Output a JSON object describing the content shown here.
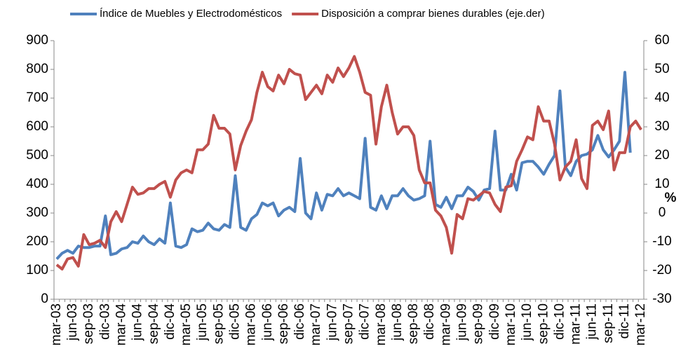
{
  "chart_data": {
    "type": "line",
    "legend": "top",
    "y2_label": "%",
    "categories": [
      "mar-03",
      null,
      null,
      "jun-03",
      null,
      null,
      "sep-03",
      null,
      null,
      "dic-03",
      null,
      null,
      "mar-04",
      null,
      null,
      "jun-04",
      null,
      null,
      "sep-04",
      null,
      null,
      "dic-04",
      null,
      null,
      "mar-05",
      null,
      null,
      "jun-05",
      null,
      null,
      "sep-05",
      null,
      null,
      "dic-05",
      null,
      null,
      "mar-06",
      null,
      null,
      "jun-06",
      null,
      null,
      "sep-06",
      null,
      null,
      "dic-06",
      null,
      null,
      "mar-07",
      null,
      null,
      "jun-07",
      null,
      null,
      "sep-07",
      null,
      null,
      "dic-07",
      null,
      null,
      "mar-08",
      null,
      null,
      "jun-08",
      null,
      null,
      "sep-08",
      null,
      null,
      "dic-08",
      null,
      null,
      "mar-09",
      null,
      null,
      "jun-09",
      null,
      null,
      "sep-09",
      null,
      null,
      "dic-09",
      null,
      null,
      "mar-10",
      null,
      null,
      "jun-10",
      null,
      null,
      "sep-10",
      null,
      null,
      "dic-10",
      null,
      null,
      "mar-11",
      null,
      null,
      "jun-11",
      null,
      null,
      "sep-11",
      null,
      null,
      "dic-11",
      null,
      null,
      "mar-12"
    ],
    "ylim": [
      0,
      900
    ],
    "yticks": [
      0,
      100,
      200,
      300,
      400,
      500,
      600,
      700,
      800,
      900
    ],
    "y2lim": [
      -30,
      60
    ],
    "y2ticks": [
      -30,
      -20,
      -10,
      0,
      10,
      20,
      30,
      40,
      50,
      60
    ],
    "series": [
      {
        "name": "Índice de Muebles y Electrodomésticos",
        "color": "#4f81bd",
        "axis": "y",
        "values": [
          140,
          160,
          170,
          160,
          185,
          180,
          180,
          185,
          185,
          290,
          155,
          160,
          175,
          180,
          200,
          195,
          220,
          200,
          190,
          210,
          195,
          335,
          185,
          180,
          190,
          245,
          235,
          240,
          265,
          245,
          240,
          260,
          250,
          430,
          250,
          240,
          280,
          295,
          335,
          325,
          335,
          290,
          310,
          320,
          305,
          490,
          300,
          280,
          370,
          310,
          365,
          360,
          385,
          360,
          370,
          360,
          350,
          560,
          320,
          310,
          360,
          315,
          360,
          360,
          385,
          360,
          345,
          350,
          360,
          550,
          330,
          320,
          355,
          315,
          360,
          360,
          390,
          375,
          345,
          380,
          385,
          585,
          380,
          380,
          435,
          380,
          475,
          480,
          480,
          460,
          435,
          470,
          500,
          725,
          460,
          430,
          480,
          500,
          505,
          520,
          570,
          520,
          495,
          520,
          550,
          790,
          510,
          null,
          null
        ]
      },
      {
        "name": "Disposición a comprar bienes durables (eje.der)",
        "color": "#c0504d",
        "axis": "y2",
        "values": [
          -18,
          -19.5,
          -16,
          -15.5,
          -18.5,
          -7.5,
          -11,
          -10.5,
          -9.5,
          -12,
          -3,
          0.5,
          -3,
          3,
          9,
          6.5,
          7,
          8.5,
          8.5,
          10,
          11,
          5.5,
          11.5,
          14,
          15,
          14,
          22,
          22,
          24,
          34,
          29.5,
          29.5,
          27.5,
          15,
          23.5,
          28.5,
          32.5,
          42,
          49,
          44,
          42.5,
          48,
          45,
          50,
          48.5,
          48,
          39.5,
          42,
          44.5,
          41.5,
          48,
          45.5,
          50.5,
          47.5,
          50.5,
          54.5,
          49,
          42,
          41,
          24,
          37,
          44.5,
          35,
          27.5,
          30,
          30,
          27,
          15,
          10.5,
          10.5,
          1,
          -1,
          -5,
          -14,
          -0.5,
          -2,
          5,
          4.5,
          6,
          7.5,
          7,
          3,
          0.5,
          9,
          9.5,
          18,
          22,
          26.5,
          25.5,
          37,
          32,
          32,
          24,
          11.5,
          16,
          18,
          25.5,
          12,
          8.5,
          30.5,
          32,
          29,
          35.5,
          15,
          21,
          21,
          30,
          32,
          29
        ]
      }
    ]
  }
}
